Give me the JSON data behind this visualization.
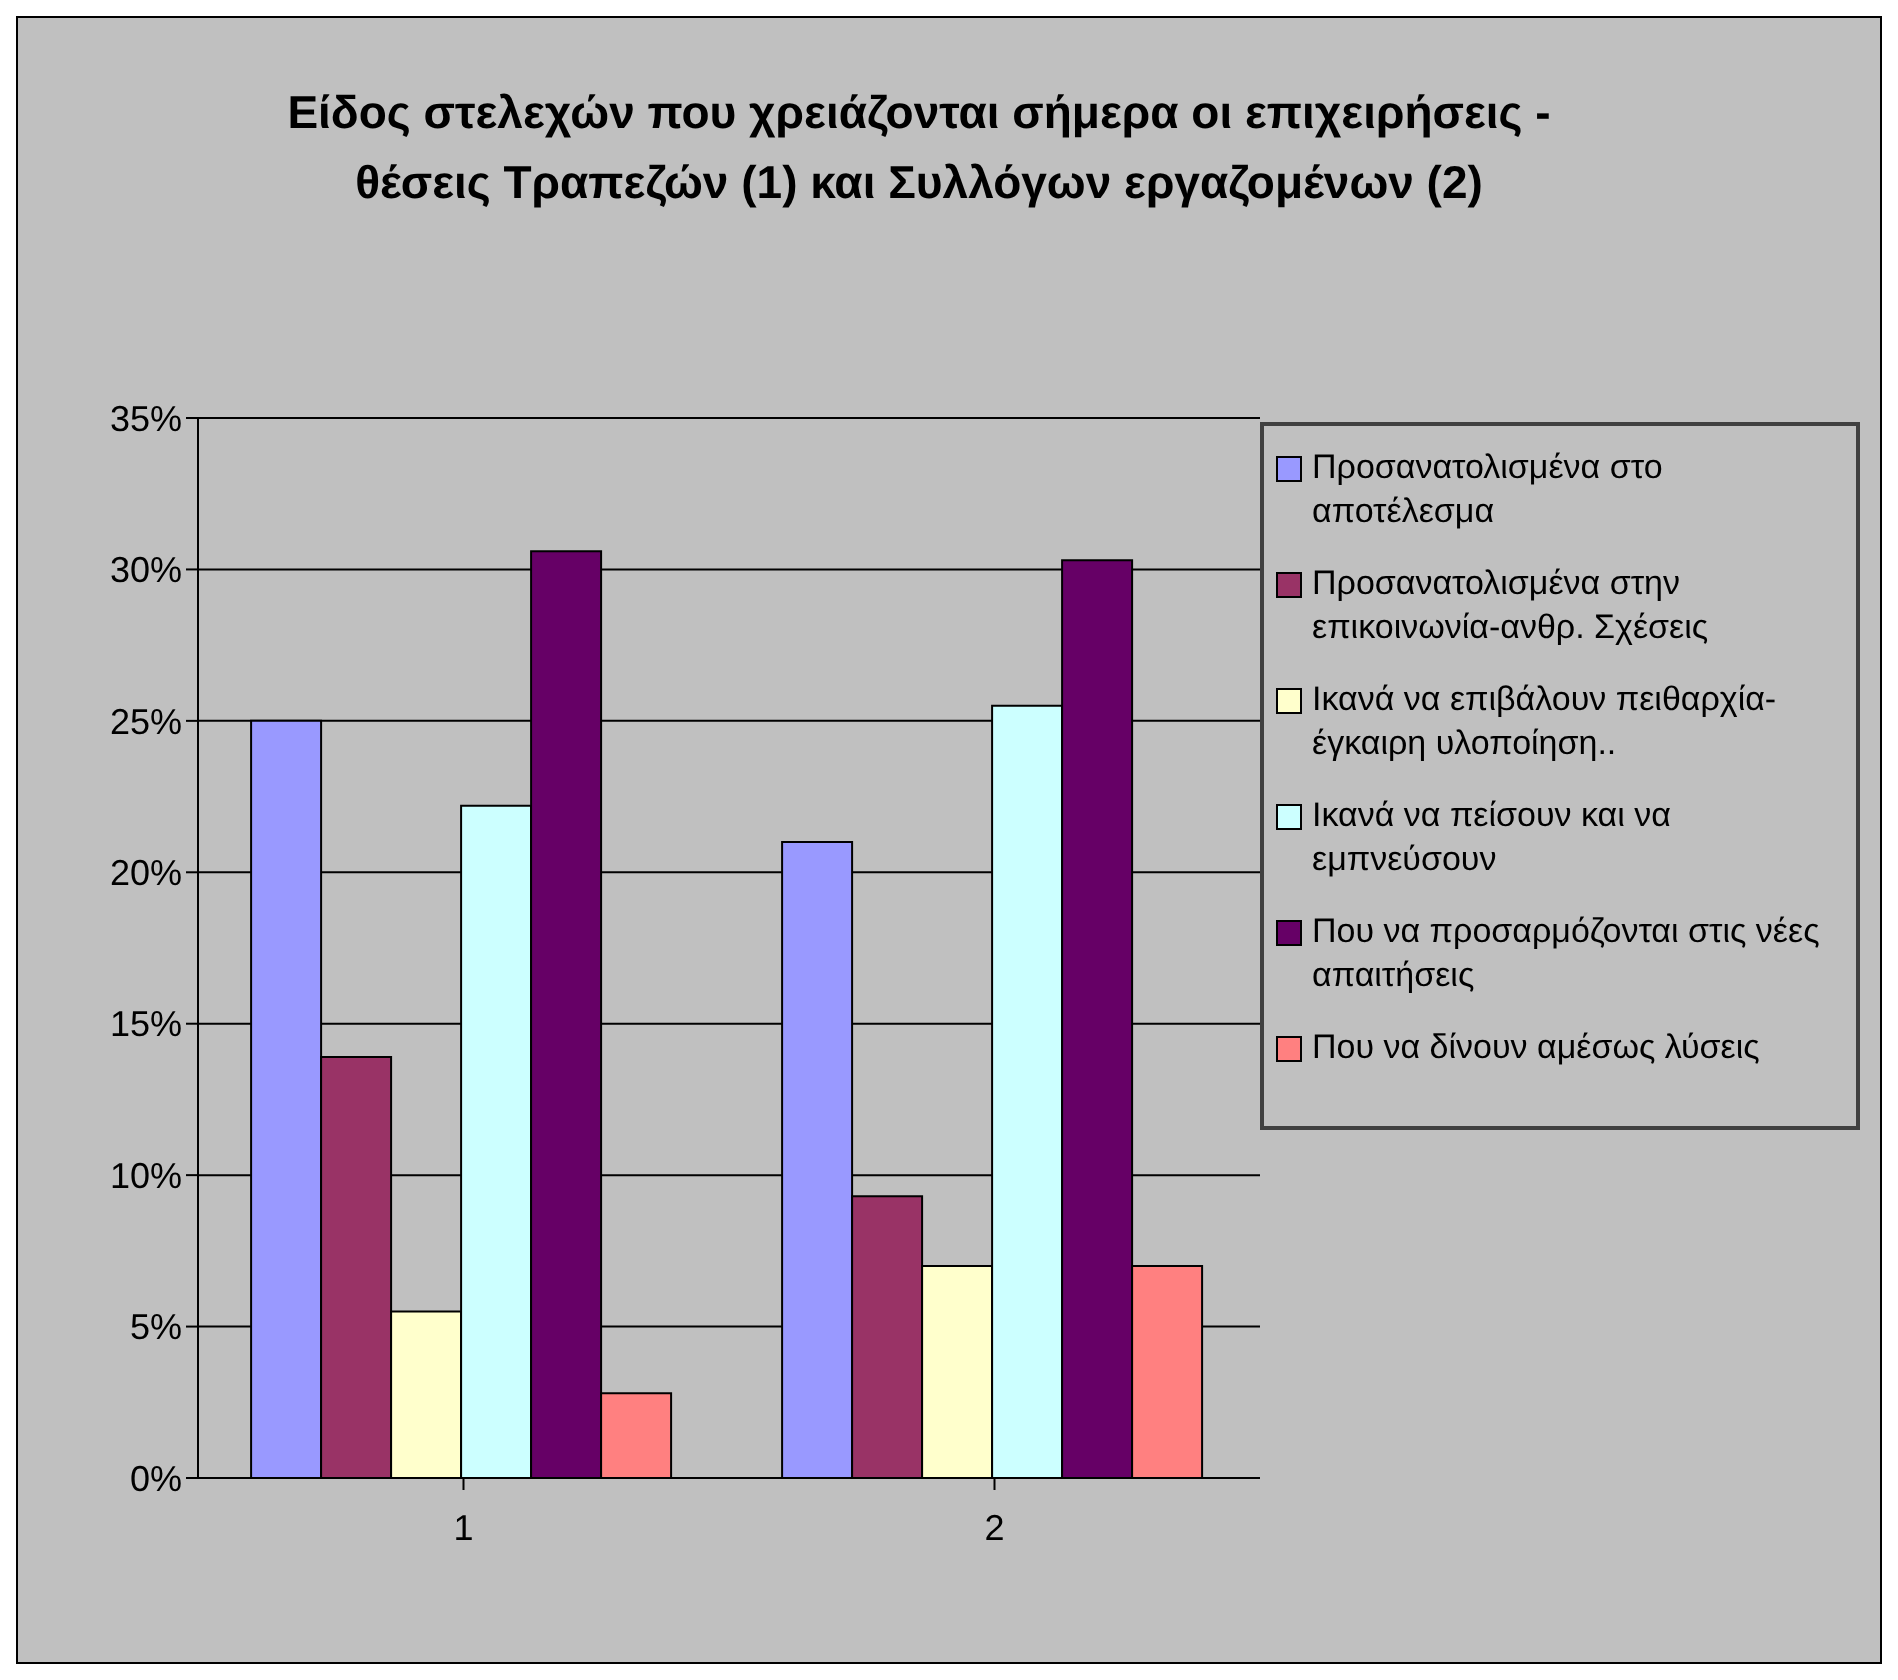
{
  "chart_data": {
    "type": "bar",
    "title": "Είδος στελεχών που χρειάζονται σήμερα οι επιχειρήσεις - θέσεις Τραπεζών (1) και Συλλόγων εργαζομένων (2)",
    "categories": [
      "1",
      "2"
    ],
    "series": [
      {
        "name": "Προσανατολισμένα στο αποτέλεσμα",
        "color": "#9999ff",
        "values": [
          25,
          21
        ]
      },
      {
        "name": "Προσανατολισμένα στην επικοινωνία-ανθρ. Σχέσεις",
        "color": "#993366",
        "values": [
          13.9,
          9.3
        ]
      },
      {
        "name": "Ικανά να επιβάλουν πειθαρχία- έγκαιρη υλοποίηση..",
        "color": "#ffffcc",
        "values": [
          5.5,
          7
        ]
      },
      {
        "name": "Ικανά να πείσουν και να εμπνεύσουν",
        "color": "#ccffff",
        "values": [
          22.2,
          25.5
        ]
      },
      {
        "name": "Που να προσαρμόζονται στις νέες απαιτήσεις",
        "color": "#660066",
        "values": [
          30.6,
          30.3
        ]
      },
      {
        "name": "Που να δίνουν αμέσως λύσεις",
        "color": "#ff8080",
        "values": [
          2.8,
          7
        ]
      }
    ],
    "ylim": [
      0,
      35
    ],
    "yticks": [
      {
        "value": 0,
        "label": "0%"
      },
      {
        "value": 5,
        "label": "5%"
      },
      {
        "value": 10,
        "label": "10%"
      },
      {
        "value": 15,
        "label": "15%"
      },
      {
        "value": 20,
        "label": "20%"
      },
      {
        "value": 25,
        "label": "25%"
      },
      {
        "value": 30,
        "label": "30%"
      },
      {
        "value": 35,
        "label": "35%"
      }
    ],
    "grid": "y",
    "legend": "right"
  }
}
